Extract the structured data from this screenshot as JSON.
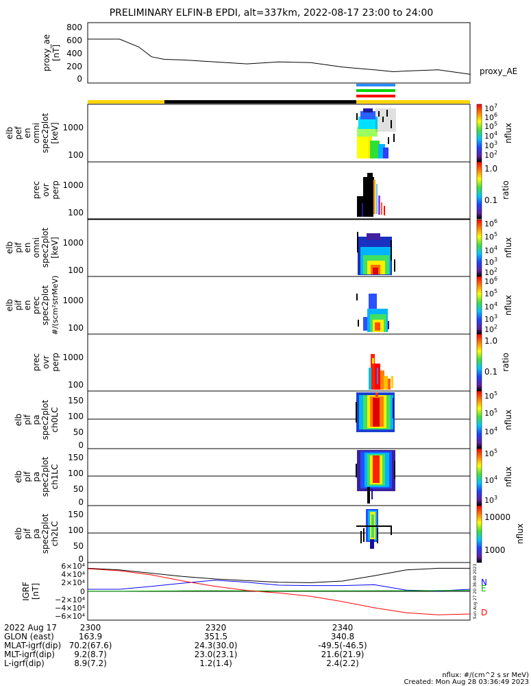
{
  "title": "PRELIMINARY ELFIN-B EPDI, alt=337km, 2022-08-17 23:00 to 24:00",
  "colors": {
    "sci_blue": "#2a8cff",
    "sci_green": "#00d200",
    "sci_red": "#ff0000",
    "bar_yellow": "#ffd400",
    "bar_black": "#000000",
    "igrf_n": "#0000ff",
    "igrf_e": "#00b400",
    "igrf_d": "#ff0000"
  },
  "panels": {
    "ae": {
      "ylabel": [
        "proxy_ae",
        "[nT]"
      ],
      "legend": "proxy_AE",
      "yticks": [
        "800",
        "600",
        "400",
        "200",
        "0"
      ]
    },
    "p1": {
      "ylabel": [
        "elb",
        "pef",
        "en",
        "omni",
        "spec2plot",
        "[keV]"
      ],
      "yticks": [
        "1000",
        "100"
      ],
      "cb_ticks": [
        "10",
        "10",
        "10",
        "10",
        "10",
        "10"
      ],
      "cb_exps": [
        "7",
        "6",
        "5",
        "4",
        "3",
        "2"
      ],
      "cb_label": "nflux"
    },
    "p2": {
      "ylabel": [
        "prec",
        "ovr",
        "perp"
      ],
      "yticks": [
        "1000",
        "100"
      ],
      "cb_ticks": [
        "1.0",
        "0.1"
      ],
      "cb_label": "ratio"
    },
    "p3": {
      "ylabel": [
        "elb",
        "pif",
        "en",
        "omni",
        "spec2plot",
        "[keV]"
      ],
      "yticks": [
        "1000",
        "100"
      ],
      "cb_ticks": [
        "10",
        "10",
        "10",
        "10",
        "10"
      ],
      "cb_exps": [
        "6",
        "5",
        "4",
        "3",
        "2"
      ],
      "cb_label": "nflux"
    },
    "p4": {
      "ylabel": [
        "elb",
        "pif",
        "en",
        "prec",
        "spec2plot",
        "#/(scm²strMeV)"
      ],
      "yticks": [
        "1000",
        "100"
      ],
      "cb_ticks": [
        "10",
        "10",
        "10",
        "10",
        "10"
      ],
      "cb_exps": [
        "6",
        "5",
        "4",
        "3",
        "2"
      ],
      "cb_label": "nflux"
    },
    "p5": {
      "ylabel": [
        "prec",
        "ovr",
        "perp"
      ],
      "yticks": [
        "1000",
        "100"
      ],
      "cb_ticks": [
        "1.0",
        "0.1"
      ],
      "cb_label": "ratio"
    },
    "p6": {
      "ylabel": [
        "elb",
        "pif",
        "pa",
        "spec2plot",
        "ch0LC"
      ],
      "yticks": [
        "150",
        "100",
        "50",
        "0"
      ],
      "cb_ticks": [
        "10",
        "10",
        "10"
      ],
      "cb_exps": [
        "5",
        "5",
        "4"
      ],
      "cb_label": "nflux"
    },
    "p7": {
      "ylabel": [
        "elb",
        "pif",
        "pa",
        "spec2plot",
        "ch1LC"
      ],
      "yticks": [
        "150",
        "100",
        "50",
        "0"
      ],
      "cb_ticks": [
        "10",
        "10",
        "10"
      ],
      "cb_exps": [
        "5",
        "4",
        "3"
      ],
      "cb_label": "nflux"
    },
    "p8": {
      "ylabel": [
        "elb",
        "pif",
        "pa",
        "spec2plot",
        "ch2LC"
      ],
      "yticks": [
        "150",
        "100",
        "50",
        "0"
      ],
      "cb_ticks": [
        "10000",
        "1000"
      ],
      "cb_label": "nflux"
    },
    "igrf": {
      "ylabel": [
        "IGRF",
        "[nT]"
      ],
      "yticks": [
        "6×10⁴",
        "4×10⁴",
        "2×10⁴",
        "0",
        "−2×10⁴",
        "−4×10⁴",
        "−6×10⁴"
      ],
      "legend": [
        "N",
        "E",
        "D"
      ],
      "stamp": "Sun Aug 27 20:36:49 2023"
    }
  },
  "footer": {
    "rows": [
      {
        "label": "2022 Aug 17",
        "values": [
          "2300",
          "2320",
          "2340"
        ]
      },
      {
        "label": "GLON (east)",
        "values": [
          "163.9",
          "351.5",
          "340.8"
        ]
      },
      {
        "label": "MLAT-igrf(dip)",
        "values": [
          "70.2(67.6)",
          "24.3(30.0)",
          "-49.5(-46.5)"
        ]
      },
      {
        "label": "MLT-igrf(dip)",
        "values": [
          "9.2(8.7)",
          "23.0(23.1)",
          "21.6(21.9)"
        ]
      },
      {
        "label": "L-igrf(dip)",
        "values": [
          "8.9(7.2)",
          "1.2(1.4)",
          "2.4(2.2)"
        ]
      }
    ],
    "note": "nflux: #/(cm^2 s sr MeV)",
    "created": "Created: Mon Aug 28 03:36:49 2023"
  },
  "chart_data": {
    "type": "line",
    "x_axis": {
      "label": "2022 Aug 17",
      "ticks": [
        "2300",
        "2320",
        "2340"
      ],
      "range_minutes": [
        0,
        60
      ]
    },
    "proxy_ae": {
      "name": "proxy_AE",
      "ylim": [
        0,
        800
      ],
      "x": [
        0,
        5,
        8,
        10,
        12,
        15,
        20,
        25,
        30,
        35,
        40,
        45,
        48,
        50,
        55,
        60
      ],
      "values": [
        600,
        600,
        480,
        330,
        290,
        280,
        250,
        220,
        250,
        240,
        170,
        130,
        100,
        110,
        130,
        60
      ]
    },
    "igrf": {
      "ylim": [
        -60000,
        60000
      ],
      "x": [
        0,
        5,
        10,
        15,
        20,
        25,
        30,
        35,
        40,
        45,
        50,
        55,
        60
      ],
      "series": [
        {
          "name": "N",
          "values": [
            5000,
            5000,
            12000,
            20000,
            27000,
            22000,
            15000,
            14000,
            14000,
            16000,
            3000,
            1000,
            5000
          ]
        },
        {
          "name": "E",
          "values": [
            500,
            400,
            800,
            1200,
            1500,
            1200,
            1000,
            1200,
            1200,
            1500,
            1500,
            2000,
            2000
          ]
        },
        {
          "name": "D",
          "values": [
            55000,
            50000,
            40000,
            25000,
            12000,
            2000,
            -4000,
            -12000,
            -25000,
            -40000,
            -52000,
            -57000,
            -55000
          ]
        },
        {
          "name": "total",
          "values": [
            56000,
            52000,
            44000,
            36000,
            30000,
            26000,
            22000,
            21000,
            25000,
            38000,
            52000,
            56000,
            56000
          ]
        }
      ]
    }
  }
}
